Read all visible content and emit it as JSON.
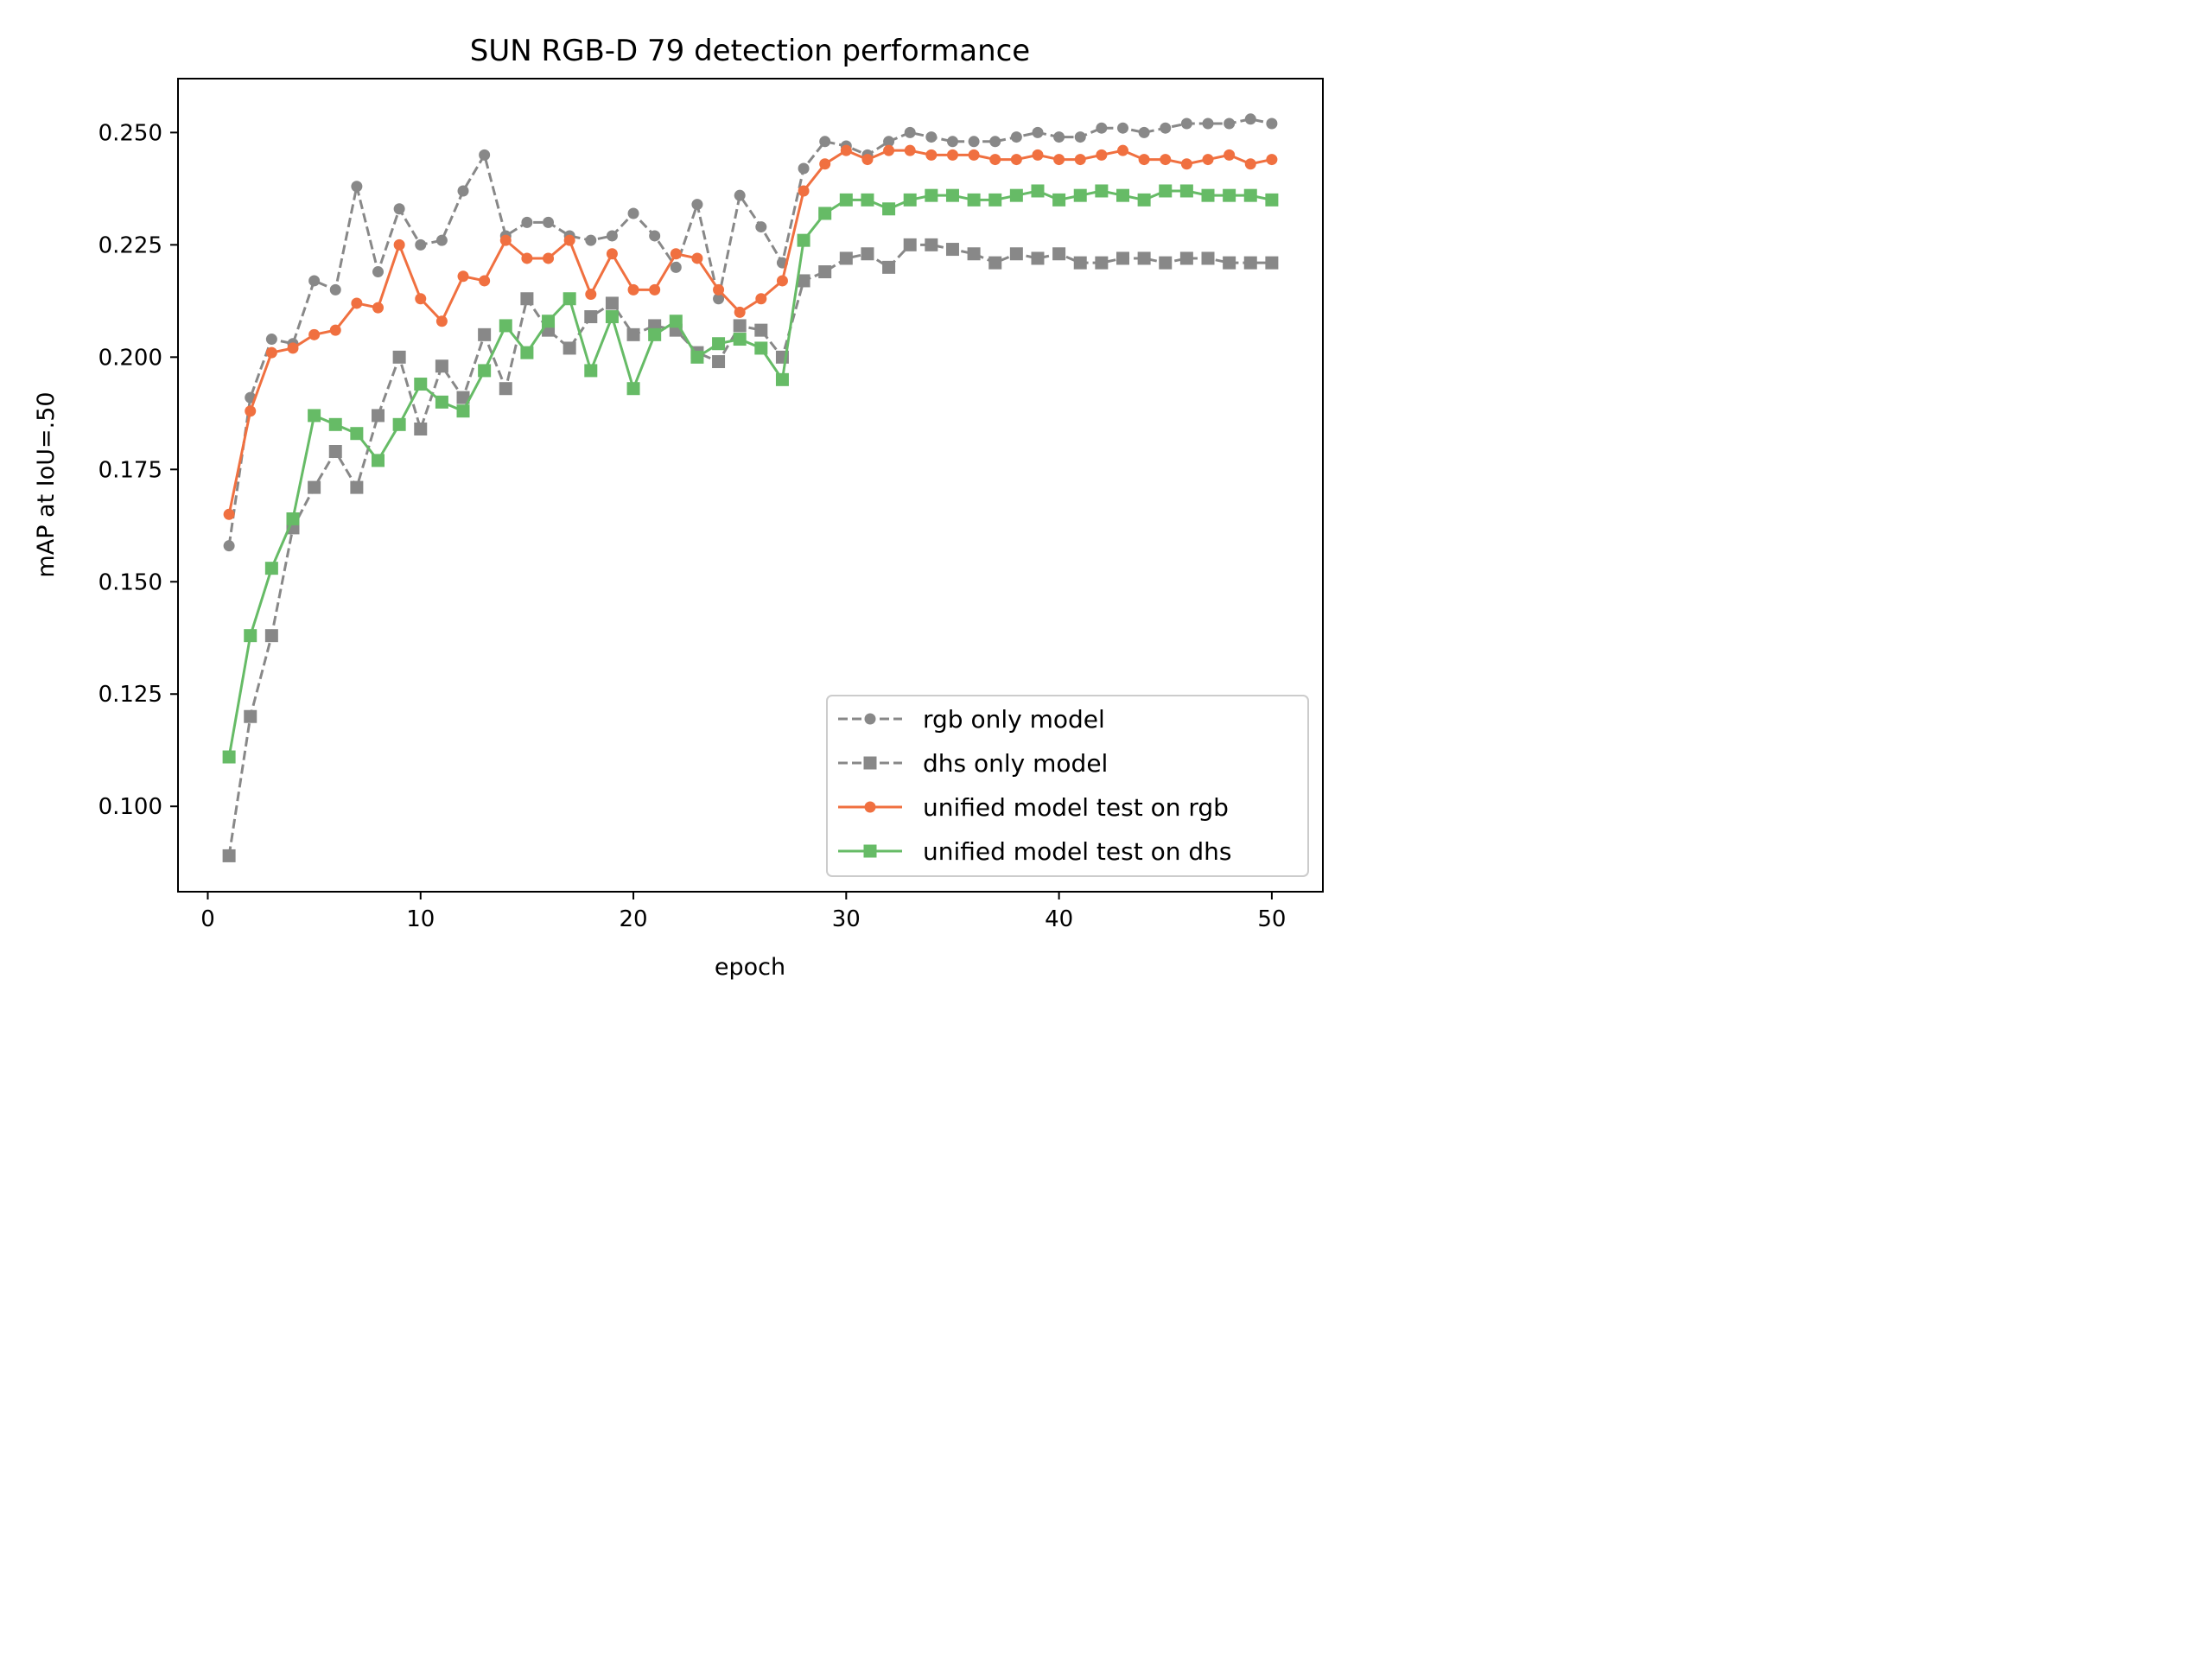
{
  "chart_data": {
    "type": "line",
    "title": "SUN RGB-D 79 detection performance",
    "xlabel": "epoch",
    "ylabel": "mAP at IoU=.50",
    "xlim": [
      -1.4,
      52.4
    ],
    "ylim": [
      0.081,
      0.262
    ],
    "xticks": [
      0,
      10,
      20,
      30,
      40,
      50
    ],
    "yticks": [
      0.1,
      0.125,
      0.15,
      0.175,
      0.2,
      0.225,
      0.25
    ],
    "ytick_labels": [
      "0.100",
      "0.125",
      "0.150",
      "0.175",
      "0.200",
      "0.225",
      "0.250"
    ],
    "grid": false,
    "legend_position": "lower-right",
    "x": [
      1,
      2,
      3,
      4,
      5,
      6,
      7,
      8,
      9,
      10,
      11,
      12,
      13,
      14,
      15,
      16,
      17,
      18,
      19,
      20,
      21,
      22,
      23,
      24,
      25,
      26,
      27,
      28,
      29,
      30,
      31,
      32,
      33,
      34,
      35,
      36,
      37,
      38,
      39,
      40,
      41,
      42,
      43,
      44,
      45,
      46,
      47,
      48,
      49,
      50
    ],
    "series": [
      {
        "name": "rgb only model",
        "color": "#888888",
        "dashed": true,
        "marker": "circle",
        "values": [
          0.158,
          0.191,
          0.204,
          0.203,
          0.217,
          0.215,
          0.238,
          0.219,
          0.233,
          0.225,
          0.226,
          0.237,
          0.245,
          0.227,
          0.23,
          0.23,
          0.227,
          0.226,
          0.227,
          0.232,
          0.227,
          0.22,
          0.234,
          0.213,
          0.236,
          0.229,
          0.221,
          0.242,
          0.248,
          0.247,
          0.245,
          0.248,
          0.25,
          0.249,
          0.248,
          0.248,
          0.248,
          0.249,
          0.25,
          0.249,
          0.249,
          0.251,
          0.251,
          0.25,
          0.251,
          0.252,
          0.252,
          0.252,
          0.253,
          0.252
        ]
      },
      {
        "name": "dhs only model",
        "color": "#888888",
        "dashed": true,
        "marker": "square",
        "values": [
          0.089,
          0.12,
          0.138,
          0.162,
          0.171,
          0.179,
          0.171,
          0.187,
          0.2,
          0.184,
          0.198,
          0.191,
          0.205,
          0.193,
          0.213,
          0.206,
          0.202,
          0.209,
          0.212,
          0.205,
          0.207,
          0.206,
          0.201,
          0.199,
          0.207,
          0.206,
          0.2,
          0.217,
          0.219,
          0.222,
          0.223,
          0.22,
          0.225,
          0.225,
          0.224,
          0.223,
          0.221,
          0.223,
          0.222,
          0.223,
          0.221,
          0.221,
          0.222,
          0.222,
          0.221,
          0.222,
          0.222,
          0.221,
          0.221,
          0.221
        ]
      },
      {
        "name": "unified model test on rgb",
        "color": "#f07040",
        "dashed": false,
        "marker": "circle",
        "values": [
          0.165,
          0.188,
          0.201,
          0.202,
          0.205,
          0.206,
          0.212,
          0.211,
          0.225,
          0.213,
          0.208,
          0.218,
          0.217,
          0.226,
          0.222,
          0.222,
          0.226,
          0.214,
          0.223,
          0.215,
          0.215,
          0.223,
          0.222,
          0.215,
          0.21,
          0.213,
          0.217,
          0.237,
          0.243,
          0.246,
          0.244,
          0.246,
          0.246,
          0.245,
          0.245,
          0.245,
          0.244,
          0.244,
          0.245,
          0.244,
          0.244,
          0.245,
          0.246,
          0.244,
          0.244,
          0.243,
          0.244,
          0.245,
          0.243,
          0.244
        ]
      },
      {
        "name": "unified model test on dhs",
        "color": "#66bb66",
        "dashed": false,
        "marker": "square",
        "values": [
          0.111,
          0.138,
          0.153,
          0.164,
          0.187,
          0.185,
          0.183,
          0.177,
          0.185,
          0.194,
          0.19,
          0.188,
          0.197,
          0.207,
          0.201,
          0.208,
          0.213,
          0.197,
          0.209,
          0.193,
          0.205,
          0.208,
          0.2,
          0.203,
          0.204,
          0.202,
          0.195,
          0.226,
          0.232,
          0.235,
          0.235,
          0.233,
          0.235,
          0.236,
          0.236,
          0.235,
          0.235,
          0.236,
          0.237,
          0.235,
          0.236,
          0.237,
          0.236,
          0.235,
          0.237,
          0.237,
          0.236,
          0.236,
          0.236,
          0.235
        ]
      }
    ]
  }
}
